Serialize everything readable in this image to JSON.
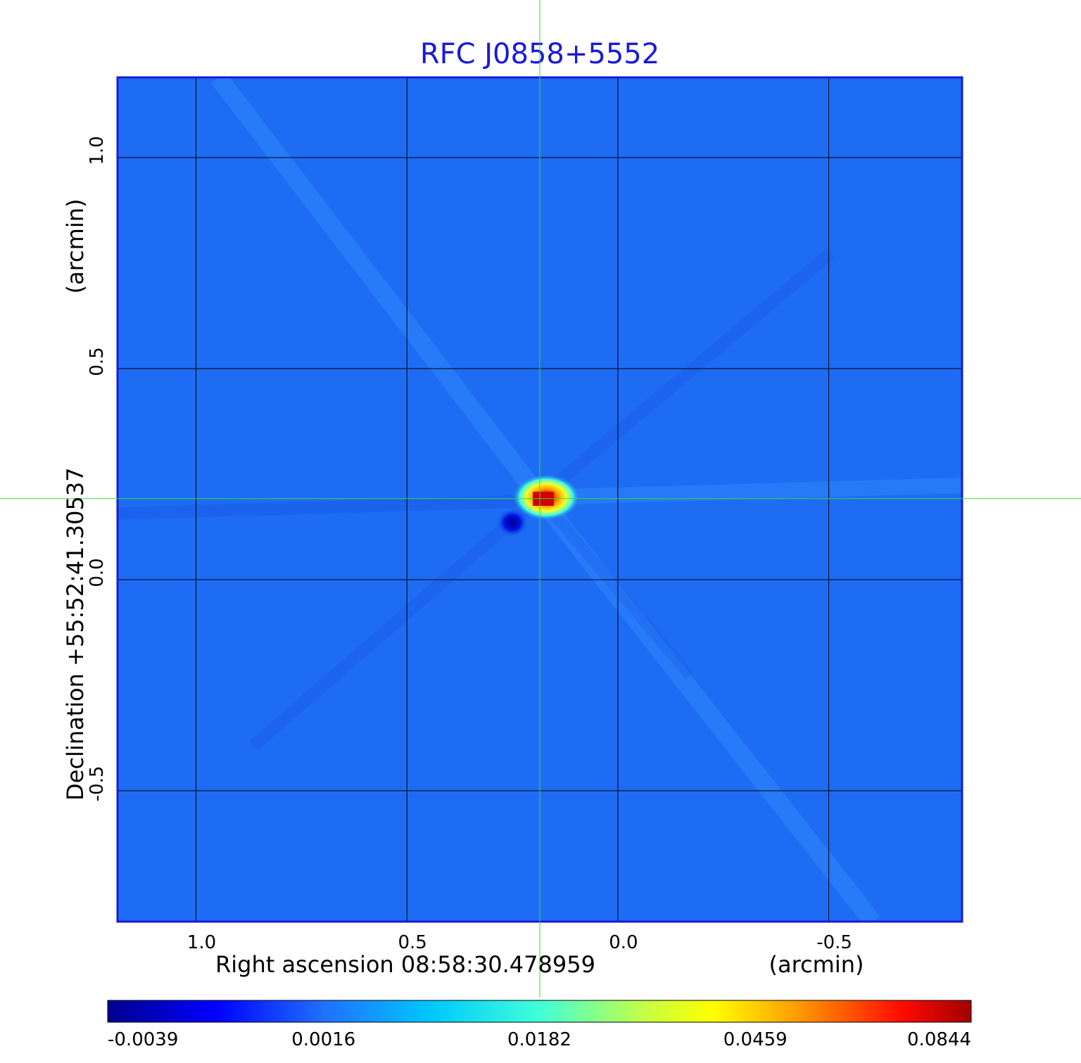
{
  "chart_data": {
    "type": "heatmap",
    "title": "RFC J0858+5552",
    "xlabel": "Right ascension  08:58:30.478959",
    "xunit": "(arcmin)",
    "ylabel": "Declination  +55:52:41.30537",
    "yunit": "(arcmin)",
    "xlim": [
      1.186,
      -0.816
    ],
    "ylim": [
      -0.81,
      1.19
    ],
    "x_ticks": [
      1.0,
      0.5,
      0.0,
      -0.5
    ],
    "x_tick_labels": [
      "1.0",
      "0.5",
      "0.0",
      "-0.5"
    ],
    "y_ticks": [
      1.0,
      0.5,
      0.0,
      -0.5
    ],
    "y_tick_labels": [
      "1.0",
      "0.5",
      "0.0",
      "-0.5"
    ],
    "grid": true,
    "crosshair": {
      "x": 0.185,
      "y": 0.192
    },
    "peak": {
      "x": 0.185,
      "y": 0.192,
      "value": 0.0844
    },
    "trough": {
      "x": 0.23,
      "y": 0.145,
      "value": -0.0039
    },
    "background_value": 0.0,
    "colormap": "jet",
    "colorbar": {
      "range": [
        -0.0039,
        0.0844
      ],
      "ticks": [
        -0.0039,
        0.0016,
        0.0182,
        0.0459,
        0.0844
      ],
      "tick_labels": [
        "-0.0039",
        "0.0016",
        "0.0182",
        "0.0459",
        "0.0844"
      ]
    },
    "colors": {
      "background_field": "#1e6cf4",
      "frame": "#1a1ad6",
      "crosshair": "#33dd33",
      "title": "#1a1ad6"
    }
  }
}
